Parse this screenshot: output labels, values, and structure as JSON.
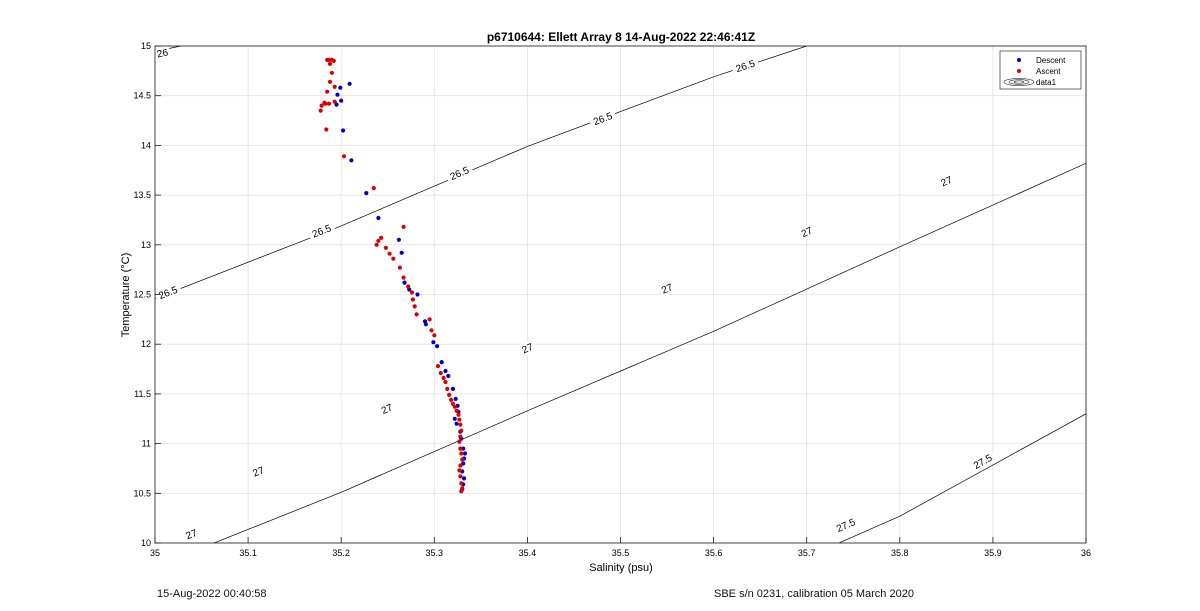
{
  "footer": {
    "left": "15-Aug-2022 00:40:58",
    "right": "SBE s/n 0231, calibration 05 March 2020"
  },
  "colors": {
    "descent": "#0000cc",
    "ascent": "#dd0000",
    "grid": "#e2e2e2",
    "contour": "#000000"
  },
  "chart_data": {
    "type": "scatter",
    "title": "p6710644: Ellett Array 8 14-Aug-2022 22:46:41Z",
    "xlabel": "Salinity (psu)",
    "ylabel": "Temperature (°C)",
    "xlim": [
      35,
      36
    ],
    "ylim": [
      10,
      15
    ],
    "xticks": [
      "35",
      "35.1",
      "35.2",
      "35.3",
      "35.4",
      "35.5",
      "35.6",
      "35.7",
      "35.8",
      "35.9",
      "36"
    ],
    "yticks": [
      "10",
      "10.5",
      "11",
      "11.5",
      "12",
      "12.5",
      "13",
      "13.5",
      "14",
      "14.5",
      "15"
    ],
    "grid": true,
    "legend": {
      "position": "top-right",
      "entries": [
        "Descent",
        "Ascent",
        "data1"
      ]
    },
    "contours": [
      {
        "level": "26",
        "points": [
          [
            35.012,
            14.97
          ],
          [
            35.06,
            15.06
          ]
        ],
        "labels": [
          {
            "text": "26",
            "x": 35.008,
            "y": 14.93
          }
        ]
      },
      {
        "level": "26.5",
        "points": [
          [
            35.0,
            12.46
          ],
          [
            35.2,
            13.19
          ],
          [
            35.4,
            13.99
          ],
          [
            35.6,
            14.69
          ],
          [
            35.7,
            15.0
          ]
        ],
        "labels": [
          {
            "text": "26.5",
            "x": 35.014,
            "y": 12.52
          },
          {
            "text": "26.5",
            "x": 35.179,
            "y": 13.14
          },
          {
            "text": "26.5",
            "x": 35.327,
            "y": 13.72
          },
          {
            "text": "26.5",
            "x": 35.481,
            "y": 14.27
          },
          {
            "text": "26.5",
            "x": 35.634,
            "y": 14.8
          }
        ]
      },
      {
        "level": "27",
        "points": [
          [
            35.05,
            9.95
          ],
          [
            35.2,
            10.51
          ],
          [
            35.4,
            11.33
          ],
          [
            35.6,
            12.13
          ],
          [
            35.8,
            12.98
          ],
          [
            36.0,
            13.82
          ]
        ],
        "labels": [
          {
            "text": "27",
            "x": 35.039,
            "y": 10.09
          },
          {
            "text": "27",
            "x": 35.111,
            "y": 10.72
          },
          {
            "text": "27",
            "x": 35.249,
            "y": 11.35
          },
          {
            "text": "27",
            "x": 35.4,
            "y": 11.96
          },
          {
            "text": "27",
            "x": 35.55,
            "y": 12.56
          },
          {
            "text": "27",
            "x": 35.7,
            "y": 13.13
          },
          {
            "text": "27",
            "x": 35.85,
            "y": 13.64
          },
          {
            "text": "27",
            "x": 35.98,
            "y": 14.72
          }
        ]
      },
      {
        "level": "27.5",
        "points": [
          [
            35.72,
            9.94
          ],
          [
            35.8,
            10.27
          ],
          [
            36.0,
            11.3
          ]
        ],
        "labels": [
          {
            "text": "27.5",
            "x": 35.742,
            "y": 10.18
          },
          {
            "text": "27.5",
            "x": 35.889,
            "y": 10.82
          }
        ]
      }
    ],
    "series": [
      {
        "name": "Descent",
        "x": [
          35.209,
          35.199,
          35.196,
          35.2,
          35.195,
          35.202,
          35.211,
          35.227,
          35.24,
          35.262,
          35.265,
          35.268,
          35.273,
          35.282,
          35.29,
          35.291,
          35.299,
          35.303,
          35.308,
          35.312,
          35.315,
          35.32,
          35.323,
          35.325,
          35.326,
          35.322,
          35.324,
          35.328,
          35.329,
          35.331,
          35.333,
          35.332,
          35.331,
          35.33,
          35.332,
          35.331,
          35.33
        ],
        "y": [
          14.62,
          14.58,
          14.51,
          14.45,
          14.41,
          14.15,
          13.85,
          13.52,
          13.27,
          13.05,
          12.92,
          12.62,
          12.55,
          12.5,
          12.23,
          12.2,
          12.02,
          11.98,
          11.82,
          11.73,
          11.68,
          11.55,
          11.45,
          11.38,
          11.32,
          11.25,
          11.2,
          11.12,
          11.05,
          10.95,
          10.9,
          10.85,
          10.8,
          10.72,
          10.65,
          10.59,
          10.54
        ]
      },
      {
        "name": "Ascent",
        "x": [
          35.185,
          35.187,
          35.19,
          35.192,
          35.188,
          35.19,
          35.188,
          35.193,
          35.185,
          35.182,
          35.179,
          35.178,
          35.183,
          35.187,
          35.193,
          35.184,
          35.203,
          35.235,
          35.243,
          35.24,
          35.238,
          35.267,
          35.248,
          35.252,
          35.256,
          35.263,
          35.267,
          35.272,
          35.276,
          35.277,
          35.279,
          35.281,
          35.295,
          35.297,
          35.3,
          35.304,
          35.307,
          35.31,
          35.312,
          35.314,
          35.316,
          35.318,
          35.32,
          35.322,
          35.324,
          35.326,
          35.327,
          35.328,
          35.329,
          35.328,
          35.327,
          35.328,
          35.329,
          35.33,
          35.328,
          35.327,
          35.328,
          35.329,
          35.33,
          35.329
        ],
        "y": [
          14.86,
          14.86,
          14.86,
          14.85,
          14.82,
          14.73,
          14.64,
          14.59,
          14.54,
          14.43,
          14.4,
          14.35,
          14.42,
          14.42,
          14.44,
          14.16,
          13.89,
          13.57,
          13.07,
          13.04,
          13.0,
          13.18,
          12.97,
          12.91,
          12.86,
          12.77,
          12.67,
          12.58,
          12.52,
          12.45,
          12.38,
          12.3,
          12.25,
          12.14,
          12.09,
          11.78,
          11.71,
          11.66,
          11.62,
          11.55,
          11.49,
          11.44,
          11.4,
          11.37,
          11.33,
          11.29,
          11.24,
          11.19,
          11.13,
          11.07,
          11.02,
          10.95,
          10.9,
          10.84,
          10.78,
          10.73,
          10.67,
          10.6,
          10.55,
          10.52
        ]
      }
    ]
  }
}
